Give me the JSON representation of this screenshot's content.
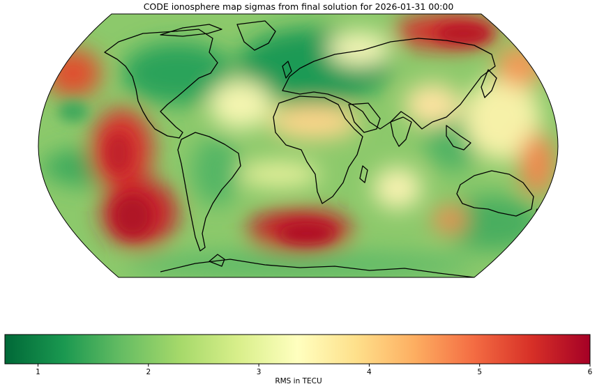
{
  "title": "CODE ionosphere map sigmas from final solution for 2026-01-31 00:00",
  "colorbar": {
    "label": "RMS in TECU",
    "min": 0.7,
    "max": 6,
    "ticks": [
      "1",
      "2",
      "3",
      "4",
      "5",
      "6"
    ],
    "colormap": "RdYlGn_r",
    "colors": [
      "#006837",
      "#1a9850",
      "#66bd63",
      "#a6d96a",
      "#d9ef8b",
      "#ffffbf",
      "#fee08b",
      "#fdae61",
      "#f46d43",
      "#d73027",
      "#a50026"
    ]
  },
  "map": {
    "projection": "Robinson",
    "background_color": "#8cc96b",
    "high_sigma_color": "#c8202a",
    "coastline_color": "#000000"
  }
}
